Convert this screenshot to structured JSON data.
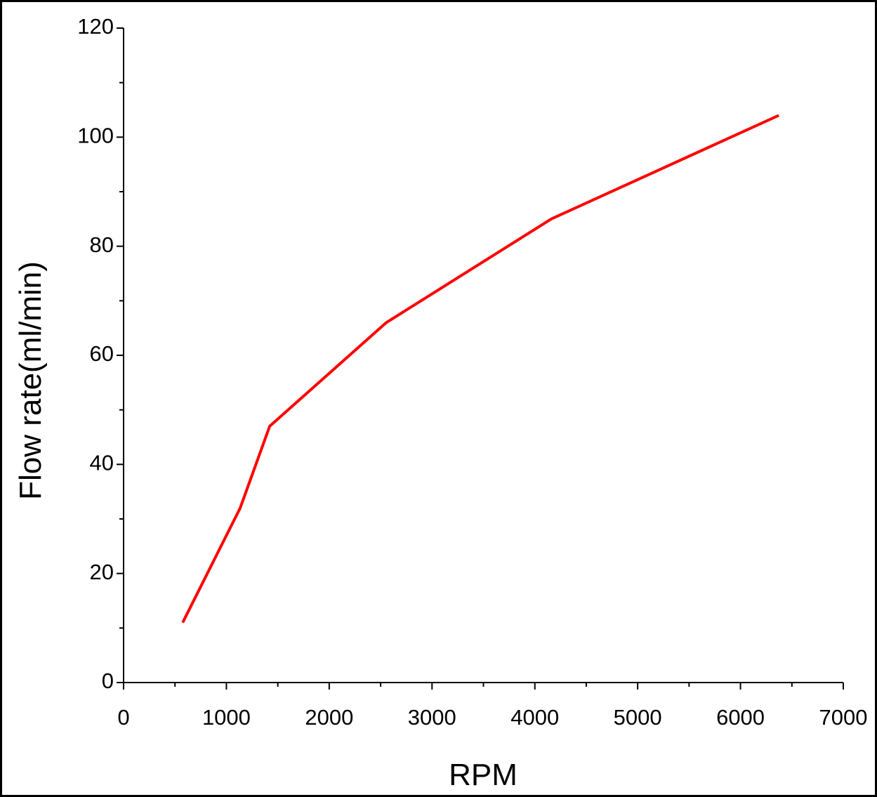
{
  "chart_data": {
    "type": "line",
    "x_label": "RPM",
    "y_label": "Flow rate(ml/min)",
    "x": [
      575,
      1134,
      1421,
      2555,
      4160,
      6373
    ],
    "series": [
      {
        "color": "#ff0000",
        "values": [
          11,
          32,
          47,
          66,
          85,
          104
        ]
      }
    ],
    "xlim": [
      0,
      7000
    ],
    "xticks": [
      0,
      1000,
      2000,
      3000,
      4000,
      5000,
      6000,
      7000
    ],
    "xminorticks": [
      500,
      1500,
      2500,
      3500,
      4500,
      5500,
      6500
    ],
    "ylim": [
      0,
      120
    ],
    "yticks": [
      0,
      20,
      40,
      60,
      80,
      100,
      120
    ],
    "yminorticks": [
      10,
      30,
      50,
      70,
      90,
      110
    ]
  }
}
